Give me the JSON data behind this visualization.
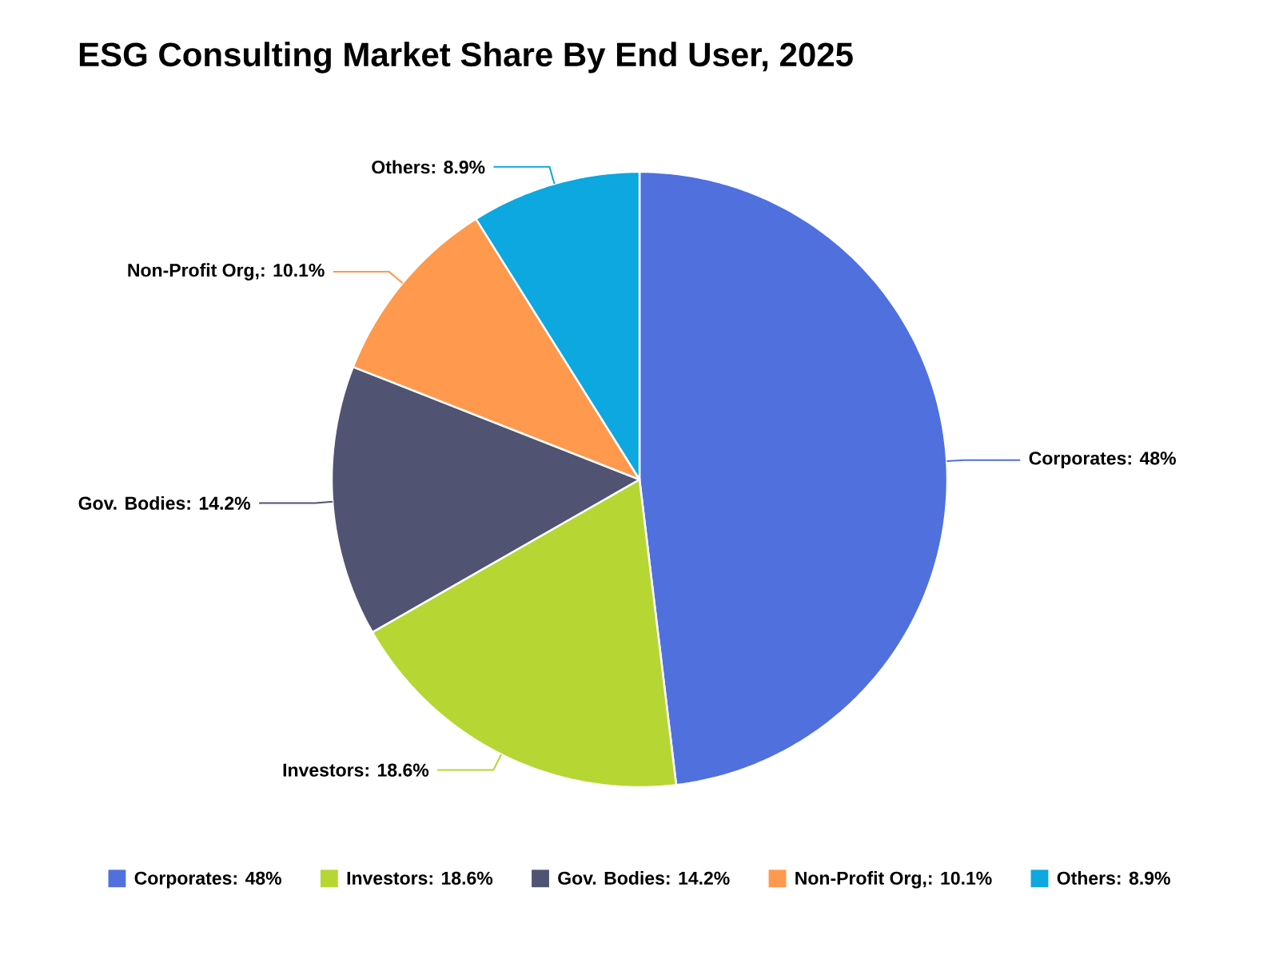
{
  "chart_data": {
    "type": "pie",
    "title": "ESG Consulting Market Share By End User, 2025",
    "categories": [
      "Corporates",
      "Investors",
      "Gov. Bodies",
      "Non-Profit Org",
      "Others"
    ],
    "values": [
      48,
      18.6,
      14.2,
      10.1,
      8.9
    ],
    "value_labels": [
      ": 48%",
      ": 18.6%",
      ": 14.2%",
      ",: 10.1%",
      ": 8.9%"
    ],
    "colors": [
      "#5070dd",
      "#b6d634",
      "#505372",
      "#ff994d",
      "#0ca8df"
    ],
    "legend": "bottom"
  }
}
